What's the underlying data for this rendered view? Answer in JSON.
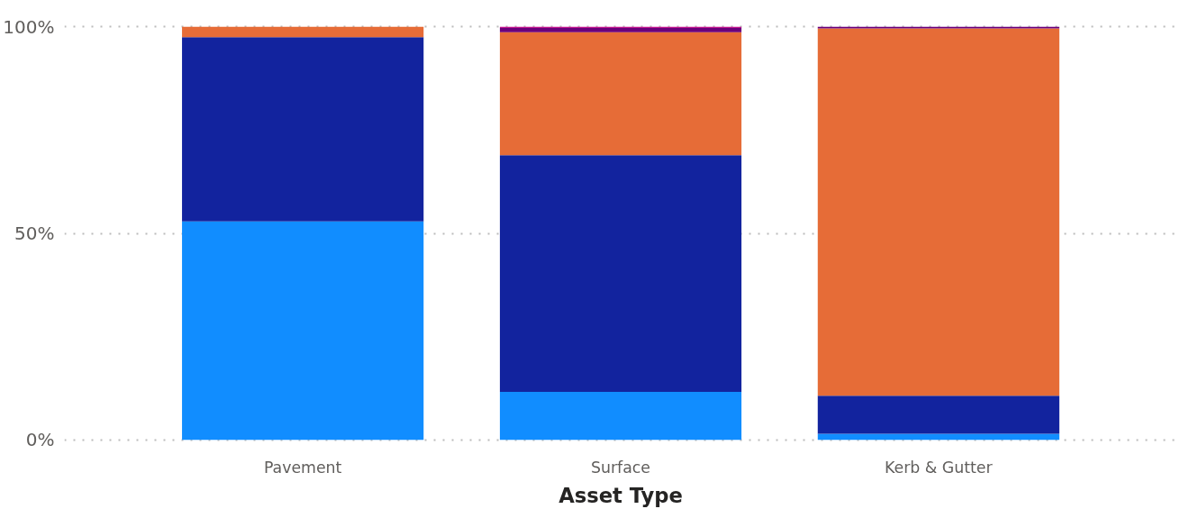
{
  "chart_data": {
    "type": "bar",
    "stacked": true,
    "xlabel": "Asset Type",
    "categories": [
      "Pavement",
      "Surface",
      "Kerb & Gutter"
    ],
    "series": [
      {
        "color": "#118dff",
        "values": [
          52.9,
          11.6,
          1.5
        ]
      },
      {
        "color": "#12239e",
        "values": [
          44.6,
          57.3,
          9.2
        ]
      },
      {
        "color": "#e66c37",
        "values": [
          2.5,
          29.8,
          88.9
        ]
      },
      {
        "color": "#6b007b",
        "values": [
          0,
          1.0,
          0.4
        ]
      },
      {
        "color": "#c3168f",
        "values": [
          0,
          0.3,
          0
        ]
      }
    ],
    "ylim": [
      0,
      100
    ],
    "yticks": [
      {
        "value": 0,
        "label": "0%"
      },
      {
        "value": 50,
        "label": "50%"
      },
      {
        "value": 100,
        "label": "100%"
      }
    ],
    "grid": "y"
  }
}
